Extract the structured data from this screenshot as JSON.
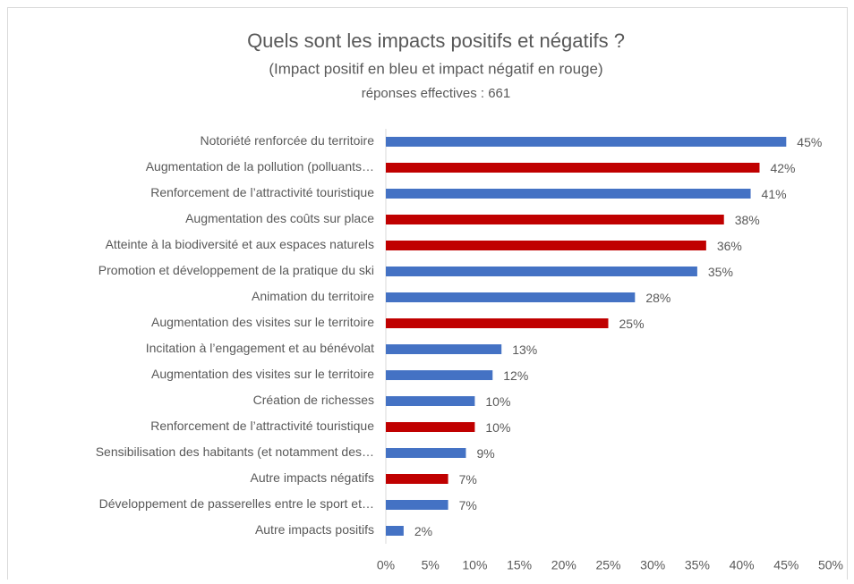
{
  "chart_data": {
    "type": "barh",
    "title": "Quels sont les impacts positifs et négatifs ?",
    "subtitle": "(Impact positif en bleu et impact négatif en rouge)",
    "note": "réponses effectives : 661",
    "categories": [
      "Notoriété renforcée du territoire",
      "Augmentation de la pollution (polluants…",
      "Renforcement de l’attractivité touristique",
      "Augmentation des coûts sur place",
      "Atteinte à la biodiversité et aux espaces naturels",
      "Promotion et développement de la pratique du ski",
      "Animation du territoire",
      "Augmentation des visites sur le territoire",
      "Incitation à l’engagement et au bénévolat",
      "Augmentation des visites sur le territoire",
      "Création de richesses",
      "Renforcement de l’attractivité touristique",
      "Sensibilisation des habitants (et notamment des…",
      "Autre impacts négatifs",
      "Développement de passerelles entre le sport et…",
      "Autre impacts positifs"
    ],
    "values": [
      45,
      42,
      41,
      38,
      36,
      35,
      28,
      25,
      13,
      12,
      10,
      10,
      9,
      7,
      7,
      2
    ],
    "value_labels": [
      "45%",
      "42%",
      "41%",
      "38%",
      "36%",
      "35%",
      "28%",
      "25%",
      "13%",
      "12%",
      "10%",
      "10%",
      "9%",
      "7%",
      "7%",
      "2%"
    ],
    "colors": [
      "#4472c4",
      "#c00000",
      "#4472c4",
      "#c00000",
      "#c00000",
      "#4472c4",
      "#4472c4",
      "#c00000",
      "#4472c4",
      "#4472c4",
      "#4472c4",
      "#c00000",
      "#4472c4",
      "#c00000",
      "#4472c4",
      "#4472c4"
    ],
    "xlim": [
      0,
      50
    ],
    "xticks": [
      {
        "value": 0,
        "label": "0%"
      },
      {
        "value": 5,
        "label": "5%"
      },
      {
        "value": 10,
        "label": "10%"
      },
      {
        "value": 15,
        "label": "15%"
      },
      {
        "value": 20,
        "label": "20%"
      },
      {
        "value": 25,
        "label": "25%"
      },
      {
        "value": 30,
        "label": "30%"
      },
      {
        "value": 35,
        "label": "35%"
      },
      {
        "value": 40,
        "label": "40%"
      },
      {
        "value": 45,
        "label": "45%"
      },
      {
        "value": 50,
        "label": "50%"
      }
    ],
    "grid": false
  }
}
